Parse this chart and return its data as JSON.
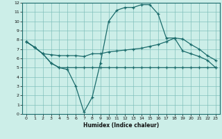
{
  "xlabel": "Humidex (Indice chaleur)",
  "background_color": "#cceee8",
  "grid_color": "#7bbcb8",
  "line_color": "#1a6b6b",
  "xlim": [
    -0.5,
    23.5
  ],
  "ylim": [
    0,
    12
  ],
  "xticks": [
    0,
    1,
    2,
    3,
    4,
    5,
    6,
    7,
    8,
    9,
    10,
    11,
    12,
    13,
    14,
    15,
    16,
    17,
    18,
    19,
    20,
    21,
    22,
    23
  ],
  "yticks": [
    0,
    1,
    2,
    3,
    4,
    5,
    6,
    7,
    8,
    9,
    10,
    11,
    12
  ],
  "line1_x": [
    0,
    1,
    2,
    3,
    4,
    5,
    6,
    7,
    8,
    9,
    10,
    11,
    12,
    13,
    14,
    15,
    16,
    17,
    18,
    19,
    20,
    21,
    22,
    23
  ],
  "line1_y": [
    7.8,
    7.2,
    6.5,
    5.5,
    5.0,
    4.8,
    3.0,
    0.2,
    1.8,
    5.5,
    10.0,
    11.2,
    11.5,
    11.5,
    11.8,
    11.8,
    10.8,
    8.2,
    8.2,
    6.8,
    6.5,
    6.2,
    5.8,
    5.0
  ],
  "line2_x": [
    0,
    1,
    2,
    3,
    4,
    5,
    6,
    7,
    8,
    9,
    10,
    11,
    12,
    13,
    14,
    15,
    16,
    17,
    18,
    19,
    20,
    21,
    22,
    23
  ],
  "line2_y": [
    7.8,
    7.2,
    6.5,
    6.4,
    6.3,
    6.3,
    6.3,
    6.2,
    6.5,
    6.5,
    6.7,
    6.8,
    6.9,
    7.0,
    7.1,
    7.3,
    7.5,
    7.8,
    8.2,
    8.1,
    7.5,
    7.0,
    6.3,
    5.8
  ],
  "line3_x": [
    0,
    1,
    2,
    3,
    4,
    5,
    6,
    7,
    8,
    9,
    10,
    11,
    12,
    13,
    14,
    15,
    16,
    17,
    18,
    19,
    20,
    21,
    22,
    23
  ],
  "line3_y": [
    7.8,
    7.2,
    6.5,
    5.5,
    5.0,
    5.0,
    5.0,
    5.0,
    5.0,
    5.0,
    5.0,
    5.0,
    5.0,
    5.0,
    5.0,
    5.0,
    5.0,
    5.0,
    5.0,
    5.0,
    5.0,
    5.0,
    5.0,
    5.0
  ],
  "marker": "+",
  "markersize": 3,
  "linewidth": 0.9
}
